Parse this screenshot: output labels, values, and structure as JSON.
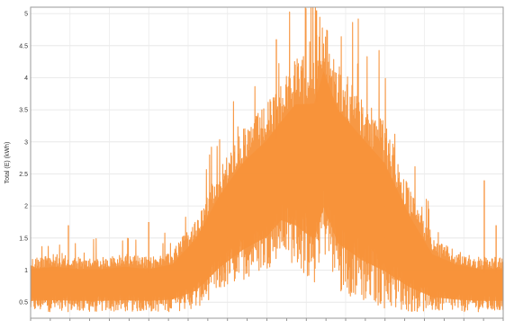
{
  "chart_data": {
    "type": "area",
    "title": "",
    "xlabel": "",
    "ylabel": "Total (E) (kWh)",
    "ylim": [
      0.25,
      5.1
    ],
    "yticks": [
      0.5,
      1,
      1.5,
      2,
      2.5,
      3,
      3.5,
      4,
      4.5,
      5
    ],
    "ytick_labels": [
      "0.5",
      "1",
      "1.5",
      "2",
      "2.5",
      "3",
      "3.5",
      "4",
      "4.5",
      "5"
    ],
    "grid": true,
    "legend": "none",
    "series": [
      {
        "color": "#f7923a",
        "x_index": [
          0,
          0.05,
          0.1,
          0.15,
          0.2,
          0.25,
          0.3,
          0.35,
          0.4,
          0.45,
          0.5,
          0.53,
          0.56,
          0.6,
          0.62,
          0.65,
          0.7,
          0.75,
          0.8,
          0.85,
          0.9,
          0.95,
          1.0
        ],
        "upper_envelope": [
          1.2,
          1.25,
          1.2,
          1.2,
          1.25,
          1.2,
          1.3,
          1.8,
          2.6,
          3.2,
          3.6,
          3.9,
          4.3,
          4.4,
          4.9,
          4.3,
          3.8,
          3.3,
          2.3,
          1.5,
          1.3,
          1.2,
          1.2
        ],
        "lower_envelope": [
          0.35,
          0.35,
          0.35,
          0.35,
          0.35,
          0.35,
          0.35,
          0.4,
          0.65,
          0.85,
          1.0,
          1.25,
          1.05,
          0.75,
          1.25,
          0.7,
          0.5,
          0.4,
          0.35,
          0.35,
          0.35,
          0.35,
          0.35
        ],
        "max_spikes": [
          1.7,
          1.75,
          4.6,
          5.05,
          2.4,
          1.7
        ]
      }
    ]
  }
}
